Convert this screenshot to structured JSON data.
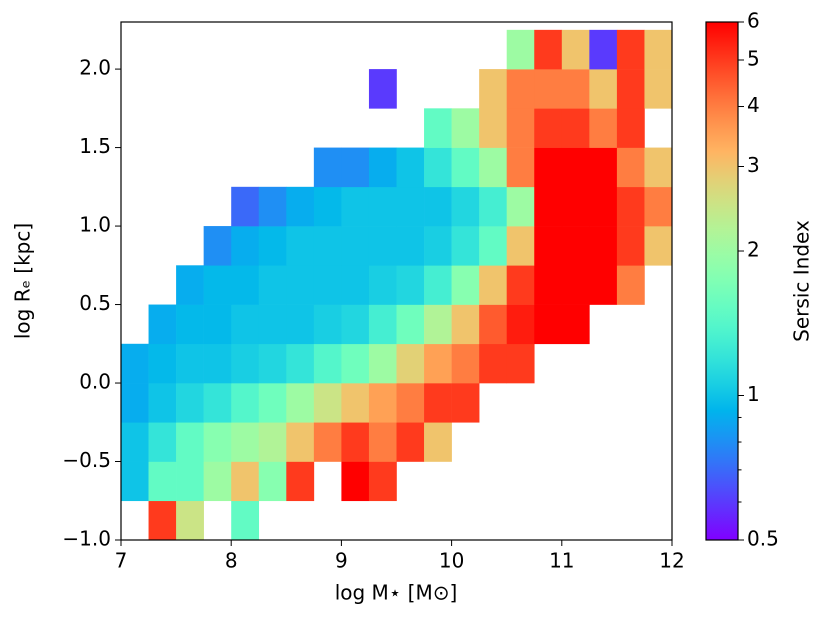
{
  "chart_data": {
    "type": "heatmap",
    "xlabel": "log M⋆ [M⊙]",
    "ylabel": "log Rₑ [kpc]",
    "colorbar_label": "Sersic Index",
    "colormap": "rainbow",
    "color_scale": "log",
    "clim": [
      0.5,
      6
    ],
    "cbar_ticks": [
      0.5,
      1,
      2,
      3,
      4,
      5,
      6
    ],
    "cbar_minor_ticks": [
      0.6,
      0.7,
      0.8,
      0.9
    ],
    "xlim": [
      7,
      12
    ],
    "ylim": [
      -1,
      2.3
    ],
    "xticks": [
      7,
      8,
      9,
      10,
      11,
      12
    ],
    "yticks": [
      {
        "value": -1,
        "label": "−1.0"
      },
      {
        "value": -0.5,
        "label": "−0.5"
      },
      {
        "value": 0,
        "label": "0.0"
      },
      {
        "value": 0.5,
        "label": "0.5"
      },
      {
        "value": 1,
        "label": "1.0"
      },
      {
        "value": 1.5,
        "label": "1.5"
      },
      {
        "value": 2,
        "label": "2.0"
      }
    ],
    "xbins": [
      7,
      7.25,
      7.5,
      7.75,
      8,
      8.25,
      8.5,
      8.75,
      9,
      9.25,
      9.5,
      9.75,
      10,
      10.25,
      10.5,
      10.75,
      11,
      11.25,
      11.5,
      11.75,
      12
    ],
    "ybins": [
      -1,
      -0.75,
      -0.5,
      -0.25,
      0,
      0.25,
      0.5,
      0.75,
      1,
      1.25,
      1.5,
      1.75,
      2,
      2.25
    ],
    "values": [
      [
        null,
        5,
        2.5,
        null,
        1.5,
        null,
        null,
        null,
        null,
        null,
        null,
        null,
        null,
        null,
        null,
        null,
        null,
        null,
        null,
        null
      ],
      [
        1,
        1.5,
        1.5,
        2,
        3,
        1.8,
        5,
        null,
        6,
        5,
        null,
        null,
        null,
        null,
        null,
        null,
        null,
        null,
        null,
        null
      ],
      [
        1,
        1.2,
        1.5,
        1.8,
        2,
        2.2,
        3,
        4,
        5,
        4,
        5,
        3,
        null,
        null,
        null,
        null,
        null,
        null,
        null,
        null
      ],
      [
        0.9,
        1,
        1.1,
        1.2,
        1.4,
        1.6,
        2,
        2.5,
        3,
        3.5,
        4,
        5,
        5,
        null,
        null,
        null,
        null,
        null,
        null,
        null
      ],
      [
        0.9,
        0.95,
        1,
        1,
        1.05,
        1.1,
        1.2,
        1.4,
        1.6,
        2,
        2.8,
        3.5,
        4,
        5,
        5,
        null,
        null,
        null,
        null,
        null
      ],
      [
        null,
        0.9,
        0.95,
        0.95,
        1,
        1,
        1,
        1.05,
        1.1,
        1.3,
        1.6,
        2.2,
        3,
        4.5,
        5.5,
        6,
        6,
        null,
        null,
        null
      ],
      [
        null,
        null,
        0.9,
        0.95,
        0.95,
        1,
        1,
        1,
        1,
        1.05,
        1.1,
        1.3,
        1.8,
        3,
        5,
        6,
        6,
        6,
        4,
        null
      ],
      [
        null,
        null,
        null,
        0.8,
        0.9,
        0.95,
        1,
        1,
        1,
        1,
        1,
        1.05,
        1.2,
        1.5,
        3,
        6,
        6,
        6,
        5,
        3
      ],
      [
        null,
        null,
        null,
        null,
        0.7,
        0.8,
        0.9,
        0.95,
        1,
        1,
        1,
        1,
        1.1,
        1.3,
        2,
        6,
        6,
        6,
        5,
        4
      ],
      [
        null,
        null,
        null,
        null,
        null,
        null,
        null,
        0.8,
        0.8,
        0.9,
        1,
        1.2,
        1.5,
        2,
        4,
        6,
        6,
        6,
        4,
        3
      ],
      [
        null,
        null,
        null,
        null,
        null,
        null,
        null,
        null,
        null,
        null,
        null,
        1.5,
        2,
        3,
        4,
        5,
        5,
        4,
        5,
        null
      ],
      [
        null,
        null,
        null,
        null,
        null,
        null,
        null,
        null,
        null,
        0.6,
        null,
        null,
        null,
        3,
        4,
        4,
        4,
        3,
        5,
        3
      ],
      [
        null,
        null,
        null,
        null,
        null,
        null,
        null,
        null,
        null,
        null,
        null,
        null,
        null,
        null,
        2,
        5,
        3,
        0.6,
        5,
        3
      ]
    ]
  }
}
